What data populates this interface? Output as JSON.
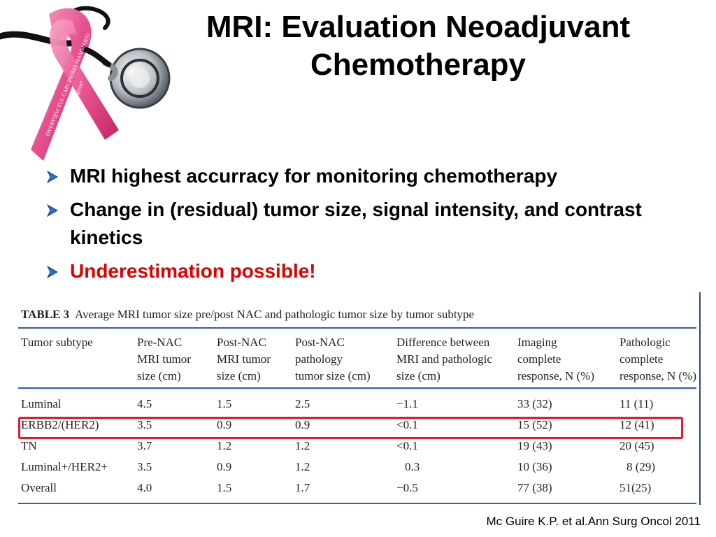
{
  "slide": {
    "title_line1": "MRI: Evaluation Neoadjuvant",
    "title_line2": "Chemotherapy",
    "bullets": [
      {
        "text": "MRI highest accurracy for monitoring chemotherapy",
        "color": "#000000"
      },
      {
        "text": "Change in (residual) tumor size, signal intensity, and contrast kinetics",
        "color": "#000000"
      },
      {
        "text": "Underestimation possible!",
        "color": "#e00000"
      }
    ],
    "logo": {
      "icon": "pink-ribbon-stethoscope-icon",
      "ribbon_text": "OVERVIEW SUL CARCINOMA MAMMARIO a un passo dalla guarigione!"
    },
    "citation": "Mc Guire K.P. et al.Ann Surg Oncol 2011"
  },
  "table": {
    "label": "TABLE 3",
    "caption": "Average MRI tumor size pre/post NAC and pathologic tumor size by tumor subtype",
    "headers": [
      [
        "Tumor subtype"
      ],
      [
        "Pre-NAC",
        "MRI tumor",
        "size (cm)"
      ],
      [
        "Post-NAC",
        "MRI tumor",
        "size (cm)"
      ],
      [
        "Post-NAC",
        "pathology",
        "tumor size (cm)"
      ],
      [
        "Difference between",
        "MRI and pathologic",
        "size (cm)"
      ],
      [
        "Imaging",
        "complete",
        "response, N (%)"
      ],
      [
        "Pathologic",
        "complete",
        "response, N (%)"
      ]
    ],
    "rows": [
      [
        "Luminal",
        "4.5",
        "1.5",
        "2.5",
        "−1.1",
        "33 (32)",
        "11 (11)"
      ],
      [
        "ERBB2/(HER2)",
        "3.5",
        "0.9",
        "0.9",
        "<0.1",
        "15 (52)",
        "12 (41)"
      ],
      [
        "TN",
        "3.7",
        "1.2",
        "1.2",
        "<0.1",
        "19 (43)",
        "20 (45)"
      ],
      [
        "Luminal+/HER2+",
        "3.5",
        "0.9",
        "1.2",
        "0.3",
        "10 (36)",
        "8 (29)"
      ],
      [
        "Overall",
        "4.0",
        "1.5",
        "1.7",
        "−0.5",
        "77 (38)",
        "51(25)"
      ]
    ],
    "highlighted_row": 1,
    "highlight_color": "#e21a2c",
    "rule_color": "#2b5f9e"
  }
}
